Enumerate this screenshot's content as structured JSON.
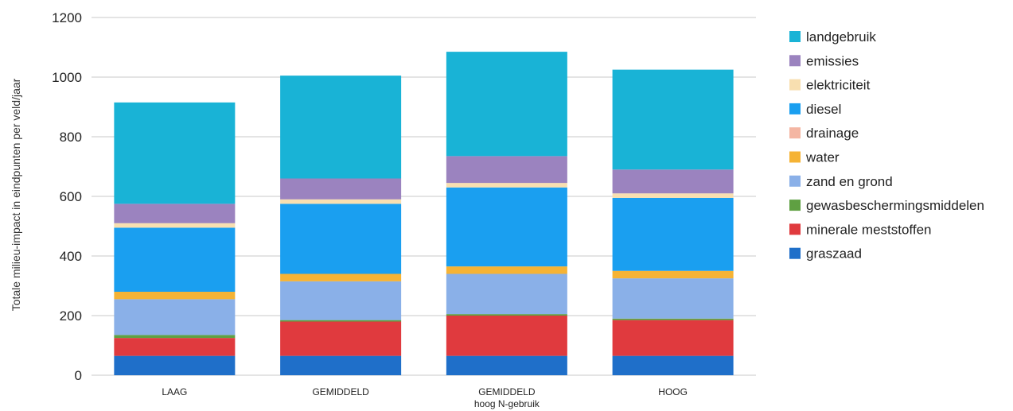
{
  "chart_data": {
    "type": "bar",
    "stacked": true,
    "ylabel": "Totale milieu-impact in eindpunten per veld/jaar",
    "xlabel": "",
    "ylim": [
      0,
      1200
    ],
    "yticks": [
      0,
      200,
      400,
      600,
      800,
      1000,
      1200
    ],
    "grid": true,
    "legend_position": "right",
    "categories": [
      [
        "LAAG"
      ],
      [
        "GEMIDDELD"
      ],
      [
        "GEMIDDELD",
        "hoog N-gebruik"
      ],
      [
        "HOOG"
      ]
    ],
    "series": [
      {
        "name": "graszaad",
        "color": "#1f6fc9",
        "values": [
          65,
          65,
          65,
          65
        ]
      },
      {
        "name": "minerale meststoffen",
        "color": "#e03a3e",
        "values": [
          60,
          115,
          135,
          120
        ]
      },
      {
        "name": "gewasbeschermingsmiddelen",
        "color": "#5fa042",
        "values": [
          10,
          5,
          5,
          5
        ]
      },
      {
        "name": "zand en grond",
        "color": "#8ab0e8",
        "values": [
          120,
          130,
          135,
          135
        ]
      },
      {
        "name": "water",
        "color": "#f5b335",
        "values": [
          25,
          25,
          25,
          25
        ]
      },
      {
        "name": "drainage",
        "color": "#f4b6a3",
        "values": [
          0,
          0,
          0,
          0
        ]
      },
      {
        "name": "diesel",
        "color": "#1a9ff0",
        "values": [
          215,
          235,
          265,
          245
        ]
      },
      {
        "name": "elektriciteit",
        "color": "#f8dfb0",
        "values": [
          15,
          15,
          15,
          15
        ]
      },
      {
        "name": "emissies",
        "color": "#9b83bf",
        "values": [
          65,
          70,
          90,
          80
        ]
      },
      {
        "name": "landgebruik",
        "color": "#19b3d6",
        "values": [
          340,
          345,
          350,
          335
        ]
      }
    ]
  }
}
